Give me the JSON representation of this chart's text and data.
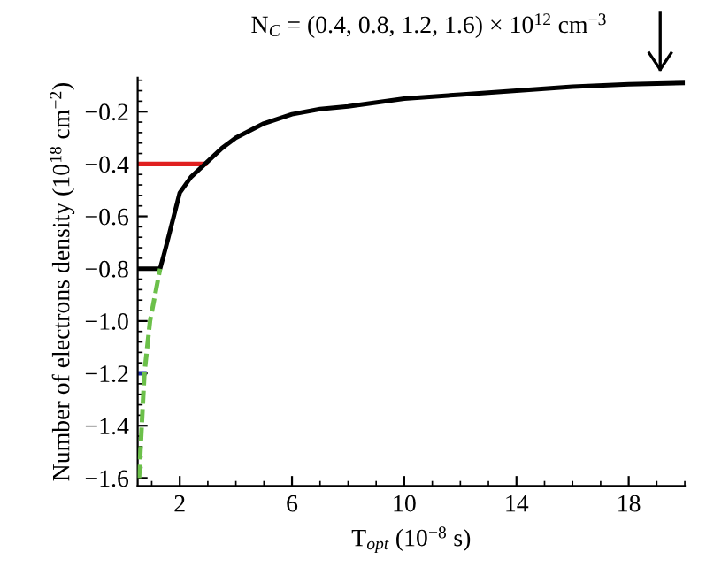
{
  "chart_data": {
    "type": "line",
    "xlabel": "T$_{opt}$ (10$^{−8}$ s)",
    "ylabel": "Number of electrons density (10$^{18}$ cm$^{−2}$)",
    "annotations": [
      "N$_{C}$ = (0.4, 0.8, 1.2, 1.6) × 10$^{12}$ cm$^{−3}$"
    ],
    "series": [
      {
        "color": "#e02020",
        "x": [
          0.5,
          2.9
        ],
        "values": [
          -0.4,
          -0.4
        ]
      },
      {
        "color": "#2030a0",
        "x": [
          0.5,
          0.74
        ],
        "values": [
          -1.2,
          -1.2
        ]
      },
      {
        "color": "#6cc04a",
        "line_style": "dashed",
        "x": [
          0.55,
          0.74,
          0.94,
          1.3
        ],
        "values": [
          -1.6,
          -1.2,
          -1.0,
          -0.8
        ]
      },
      {
        "color": "#000000",
        "x": [
          0.5,
          1.3,
          1.5,
          2.0,
          2.4,
          2.9,
          3.5,
          4,
          5,
          6,
          7,
          8,
          10,
          12,
          14,
          16,
          18,
          20
        ],
        "values": [
          -0.8,
          -0.8,
          -0.72,
          -0.51,
          -0.45,
          -0.4,
          -0.34,
          -0.3,
          -0.245,
          -0.21,
          -0.19,
          -0.18,
          -0.15,
          -0.135,
          -0.12,
          -0.105,
          -0.095,
          -0.09
        ]
      }
    ],
    "xlim": [
      0.5,
      20
    ],
    "ylim": [
      -1.63,
      -0.07
    ],
    "xticks": [
      2,
      6,
      10,
      14,
      18
    ],
    "yticks": [
      {
        "value": -0.2,
        "label": "−0.2"
      },
      {
        "value": -0.4,
        "label": "−0.4"
      },
      {
        "value": -0.6,
        "label": "−0.6"
      },
      {
        "value": -0.8,
        "label": "−0.8"
      },
      {
        "value": -1.0,
        "label": "−1.0"
      },
      {
        "value": -1.2,
        "label": "−1.2"
      },
      {
        "value": -1.4,
        "label": "−1.4"
      },
      {
        "value": -1.6,
        "label": "−1.6"
      }
    ],
    "grid": false,
    "legend": false,
    "marker": "none",
    "line_style": "solid"
  }
}
